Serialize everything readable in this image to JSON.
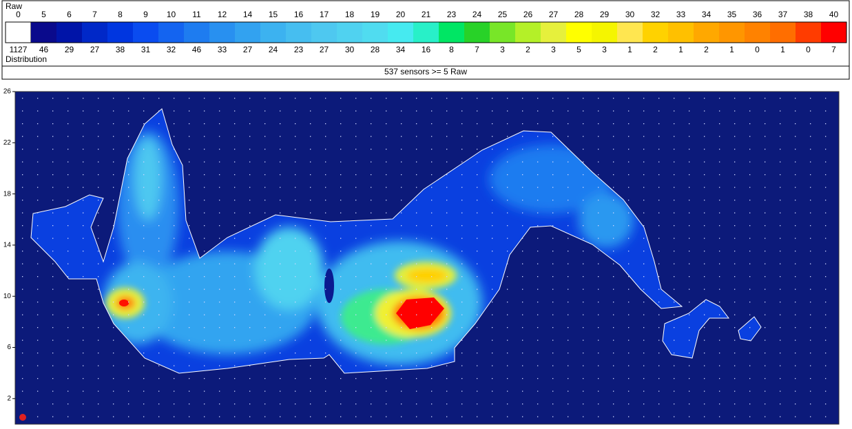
{
  "legend": {
    "raw_label": "Raw",
    "distribution_label": "Distribution",
    "summary": "537 sensors >= 5 Raw",
    "levels": [
      {
        "raw": 0,
        "count": 1127,
        "color": "#ffffff"
      },
      {
        "raw": 5,
        "count": 46,
        "color": "#0a0a8c"
      },
      {
        "raw": 6,
        "count": 29,
        "color": "#0014a8"
      },
      {
        "raw": 7,
        "count": 27,
        "color": "#0028c8"
      },
      {
        "raw": 8,
        "count": 38,
        "color": "#0036e0"
      },
      {
        "raw": 9,
        "count": 31,
        "color": "#0a4cf0"
      },
      {
        "raw": 10,
        "count": 32,
        "color": "#1464f0"
      },
      {
        "raw": 11,
        "count": 46,
        "color": "#1e7cf0"
      },
      {
        "raw": 12,
        "count": 33,
        "color": "#2890f0"
      },
      {
        "raw": 14,
        "count": 27,
        "color": "#32a2f0"
      },
      {
        "raw": 15,
        "count": 24,
        "color": "#3cb2f0"
      },
      {
        "raw": 16,
        "count": 23,
        "color": "#46bef0"
      },
      {
        "raw": 17,
        "count": 27,
        "color": "#4ec8f0"
      },
      {
        "raw": 18,
        "count": 30,
        "color": "#50d2f0"
      },
      {
        "raw": 19,
        "count": 28,
        "color": "#50dcf0"
      },
      {
        "raw": 20,
        "count": 34,
        "color": "#46eaf0"
      },
      {
        "raw": 21,
        "count": 16,
        "color": "#28f0c8"
      },
      {
        "raw": 23,
        "count": 8,
        "color": "#00e664"
      },
      {
        "raw": 24,
        "count": 7,
        "color": "#28d228"
      },
      {
        "raw": 25,
        "count": 3,
        "color": "#78e628"
      },
      {
        "raw": 26,
        "count": 2,
        "color": "#b4f028"
      },
      {
        "raw": 27,
        "count": 3,
        "color": "#e6f03c"
      },
      {
        "raw": 28,
        "count": 5,
        "color": "#ffff00"
      },
      {
        "raw": 29,
        "count": 3,
        "color": "#f5f500"
      },
      {
        "raw": 30,
        "count": 1,
        "color": "#ffe650"
      },
      {
        "raw": 32,
        "count": 2,
        "color": "#ffd200"
      },
      {
        "raw": 33,
        "count": 1,
        "color": "#ffc000"
      },
      {
        "raw": 34,
        "count": 2,
        "color": "#ffa800"
      },
      {
        "raw": 35,
        "count": 1,
        "color": "#ff9600"
      },
      {
        "raw": 36,
        "count": 0,
        "color": "#ff8200"
      },
      {
        "raw": 37,
        "count": 1,
        "color": "#ff6e00"
      },
      {
        "raw": 38,
        "count": 0,
        "color": "#ff3c00"
      },
      {
        "raw": 40,
        "count": 7,
        "color": "#ff0000"
      }
    ]
  },
  "plot": {
    "ylim": [
      0,
      26
    ],
    "yticks": [
      2,
      6,
      10,
      14,
      18,
      22,
      26
    ]
  }
}
